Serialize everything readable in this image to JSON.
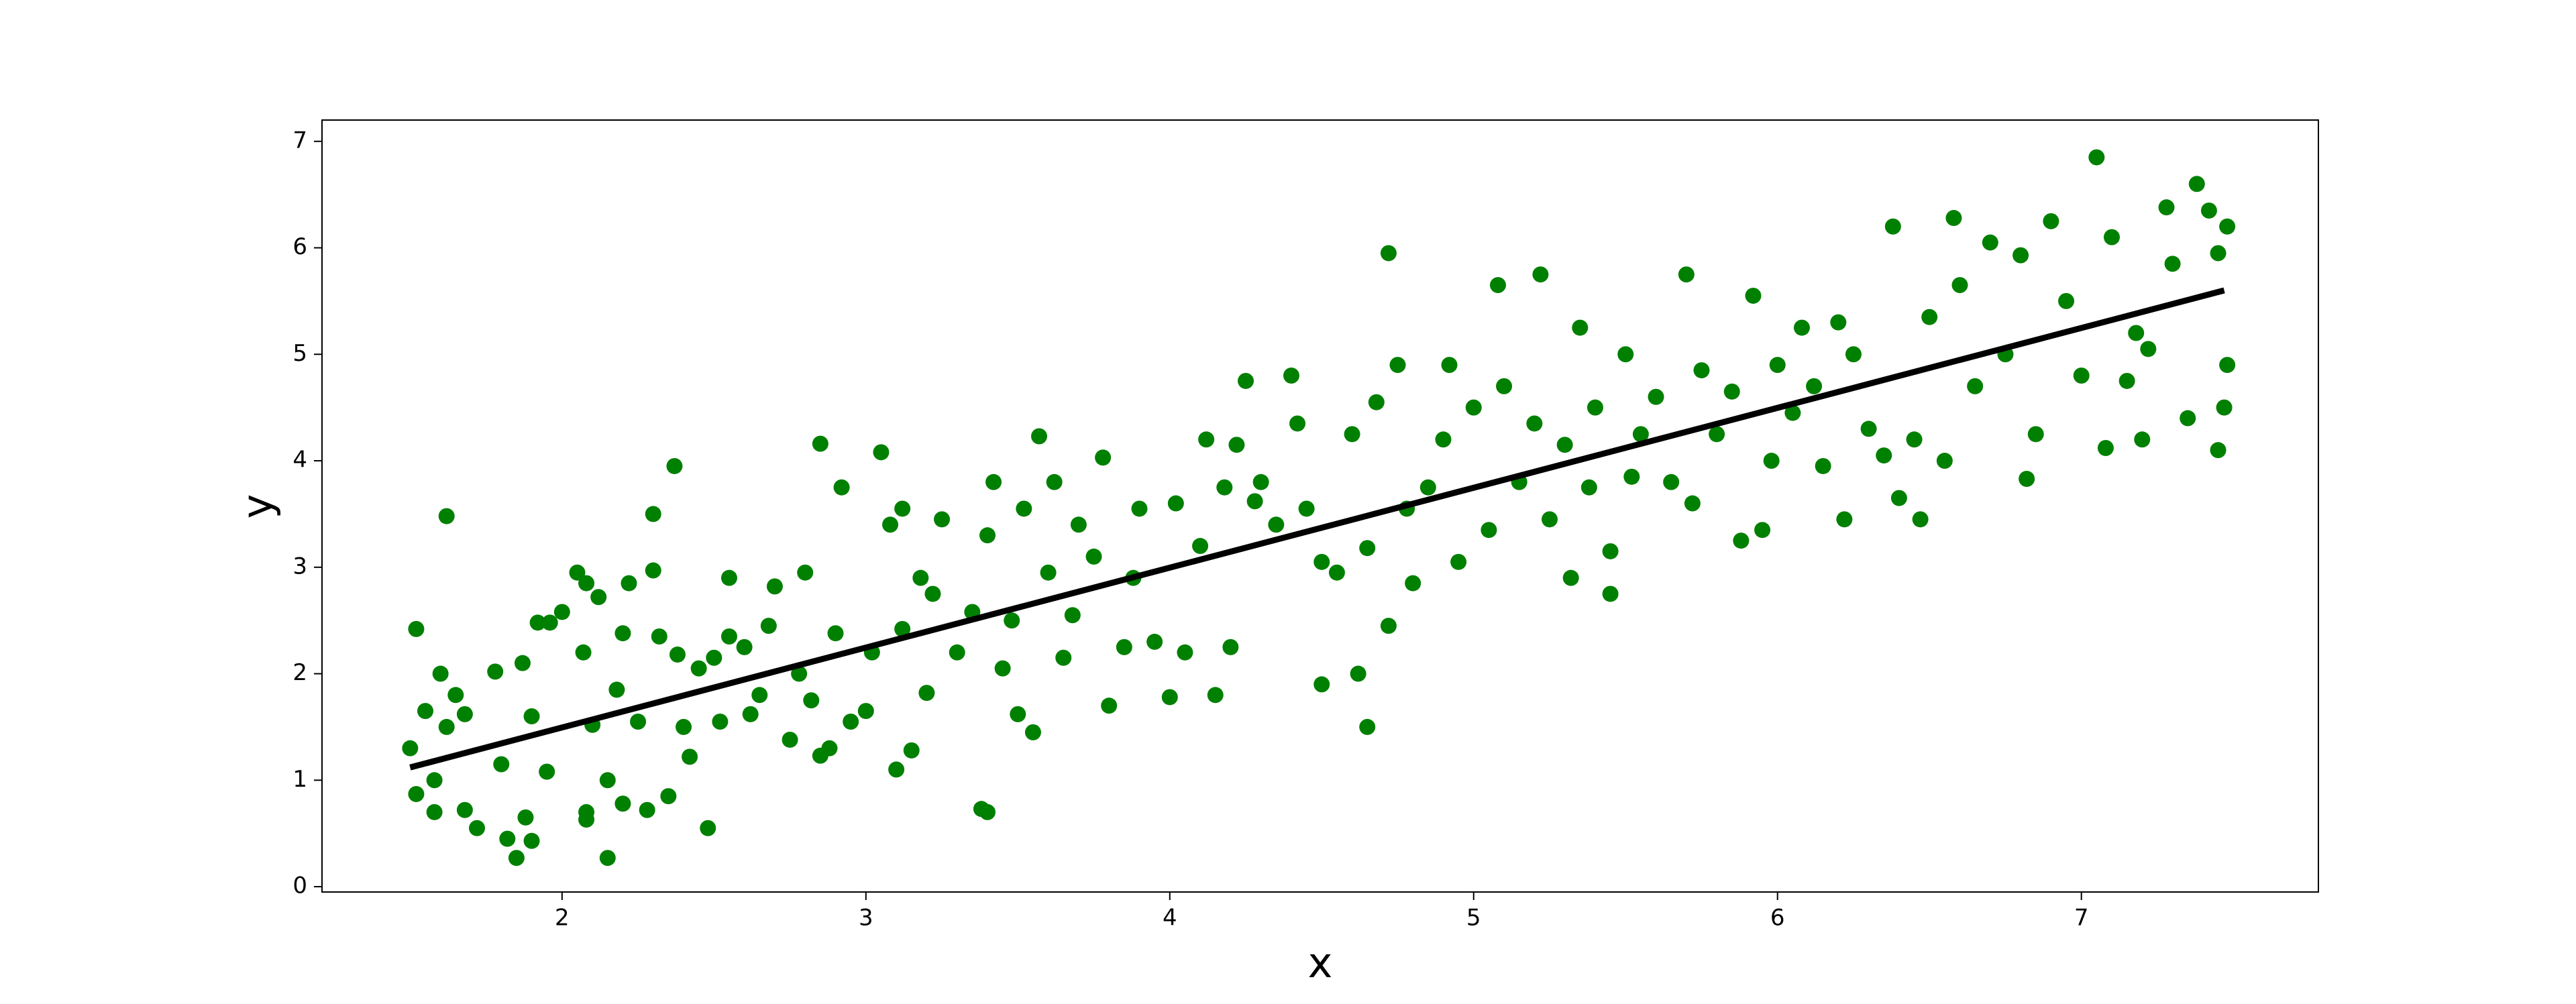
{
  "chart_data": {
    "type": "scatter",
    "x_label": "x",
    "y_label": "y",
    "xlim": [
      1.21,
      7.78
    ],
    "ylim": [
      -0.05,
      7.2
    ],
    "xticks": [
      2,
      3,
      4,
      5,
      6,
      7
    ],
    "yticks": [
      0,
      1,
      2,
      3,
      4,
      5,
      6,
      7
    ],
    "points": {
      "color": "#008000",
      "x": [
        1.52,
        1.5,
        1.52,
        1.55,
        1.58,
        1.6,
        1.58,
        1.62,
        1.62,
        1.65,
        1.68,
        1.68,
        1.72,
        1.78,
        1.8,
        1.82,
        1.85,
        1.87,
        1.88,
        1.9,
        1.9,
        1.92,
        1.95,
        1.96,
        2.0,
        2.05,
        2.07,
        2.08,
        2.08,
        2.08,
        2.1,
        2.12,
        2.15,
        2.15,
        2.18,
        2.2,
        2.2,
        2.22,
        2.25,
        2.28,
        2.3,
        2.3,
        2.32,
        2.35,
        2.37,
        2.38,
        2.4,
        2.42,
        2.45,
        2.48,
        2.5,
        2.52,
        2.55,
        2.55,
        2.6,
        2.62,
        2.65,
        2.68,
        2.7,
        2.75,
        2.78,
        2.8,
        2.82,
        2.85,
        2.85,
        2.88,
        2.9,
        2.92,
        2.95,
        3.0,
        3.02,
        3.05,
        3.08,
        3.1,
        3.12,
        3.12,
        3.15,
        3.18,
        3.2,
        3.22,
        3.25,
        3.3,
        3.35,
        3.38,
        3.4,
        3.4,
        3.42,
        3.45,
        3.48,
        3.5,
        3.52,
        3.55,
        3.57,
        3.6,
        3.62,
        3.65,
        3.68,
        3.7,
        3.75,
        3.78,
        3.8,
        3.85,
        3.88,
        3.9,
        3.95,
        4.0,
        4.02,
        4.05,
        4.1,
        4.12,
        4.15,
        4.18,
        4.2,
        4.22,
        4.25,
        4.28,
        4.3,
        4.35,
        4.4,
        4.42,
        4.45,
        4.5,
        4.5,
        4.55,
        4.6,
        4.62,
        4.65,
        4.65,
        4.68,
        4.72,
        4.72,
        4.75,
        4.78,
        4.8,
        4.85,
        4.9,
        4.92,
        4.95,
        5.0,
        5.05,
        5.08,
        5.1,
        5.15,
        5.2,
        5.22,
        5.25,
        5.3,
        5.32,
        5.35,
        5.38,
        5.4,
        5.45,
        5.45,
        5.5,
        5.52,
        5.55,
        5.6,
        5.65,
        5.7,
        5.72,
        5.75,
        5.8,
        5.85,
        5.88,
        5.92,
        5.95,
        5.98,
        6.0,
        6.05,
        6.08,
        6.12,
        6.15,
        6.2,
        6.22,
        6.25,
        6.3,
        6.35,
        6.38,
        6.4,
        6.45,
        6.47,
        6.5,
        6.55,
        6.58,
        6.6,
        6.65,
        6.7,
        6.75,
        6.8,
        6.82,
        6.85,
        6.9,
        6.95,
        7.0,
        7.05,
        7.08,
        7.1,
        7.15,
        7.18,
        7.2,
        7.22,
        7.28,
        7.3,
        7.35,
        7.38,
        7.42,
        7.45,
        7.45,
        7.47,
        7.48,
        7.48
      ],
      "y": [
        2.42,
        1.3,
        0.87,
        1.65,
        1.0,
        2.0,
        0.7,
        3.48,
        1.5,
        1.8,
        1.62,
        0.72,
        0.55,
        2.02,
        1.15,
        0.45,
        0.27,
        2.1,
        0.65,
        1.6,
        0.43,
        2.48,
        1.08,
        2.48,
        2.58,
        2.95,
        2.2,
        2.85,
        0.7,
        0.63,
        1.52,
        2.72,
        1.0,
        0.27,
        1.85,
        0.78,
        2.38,
        2.85,
        1.55,
        0.72,
        2.97,
        3.5,
        2.35,
        0.85,
        3.95,
        2.18,
        1.5,
        1.22,
        2.05,
        0.55,
        2.15,
        1.55,
        2.35,
        2.9,
        2.25,
        1.62,
        1.8,
        2.45,
        2.82,
        1.38,
        2.0,
        2.95,
        1.75,
        1.23,
        4.16,
        1.3,
        2.38,
        3.75,
        1.55,
        1.65,
        2.2,
        4.08,
        3.4,
        1.1,
        2.42,
        3.55,
        1.28,
        2.9,
        1.82,
        2.75,
        3.45,
        2.2,
        2.58,
        0.73,
        0.7,
        3.3,
        3.8,
        2.05,
        2.5,
        1.62,
        3.55,
        1.45,
        4.23,
        2.95,
        3.8,
        2.15,
        2.55,
        3.4,
        3.1,
        4.03,
        1.7,
        2.25,
        2.9,
        3.55,
        2.3,
        1.78,
        3.6,
        2.2,
        3.2,
        4.2,
        1.8,
        3.75,
        2.25,
        4.15,
        4.75,
        3.62,
        3.8,
        3.4,
        4.8,
        4.35,
        3.55,
        3.05,
        1.9,
        2.95,
        4.25,
        2.0,
        3.18,
        1.5,
        4.55,
        2.45,
        5.95,
        4.9,
        3.55,
        2.85,
        3.75,
        4.2,
        4.9,
        3.05,
        4.5,
        3.35,
        5.65,
        4.7,
        3.8,
        4.35,
        5.75,
        3.45,
        4.15,
        2.9,
        5.25,
        3.75,
        4.5,
        3.15,
        2.75,
        5.0,
        3.85,
        4.25,
        4.6,
        3.8,
        5.75,
        3.6,
        4.85,
        4.25,
        4.65,
        3.25,
        5.55,
        3.35,
        4.0,
        4.9,
        4.45,
        5.25,
        4.7,
        3.95,
        5.3,
        3.45,
        5.0,
        4.3,
        4.05,
        6.2,
        3.65,
        4.2,
        3.45,
        5.35,
        4.0,
        6.28,
        5.65,
        4.7,
        6.05,
        5.0,
        5.93,
        3.83,
        4.25,
        6.25,
        5.5,
        4.8,
        6.85,
        4.12,
        6.1,
        4.75,
        5.2,
        4.2,
        5.05,
        6.38,
        5.85,
        4.4,
        6.6,
        6.35,
        4.1,
        5.95,
        4.5,
        6.2,
        4.9
      ]
    },
    "fit_line": {
      "color": "#000000",
      "x": [
        1.5,
        7.47
      ],
      "y": [
        1.12,
        5.6
      ]
    }
  }
}
